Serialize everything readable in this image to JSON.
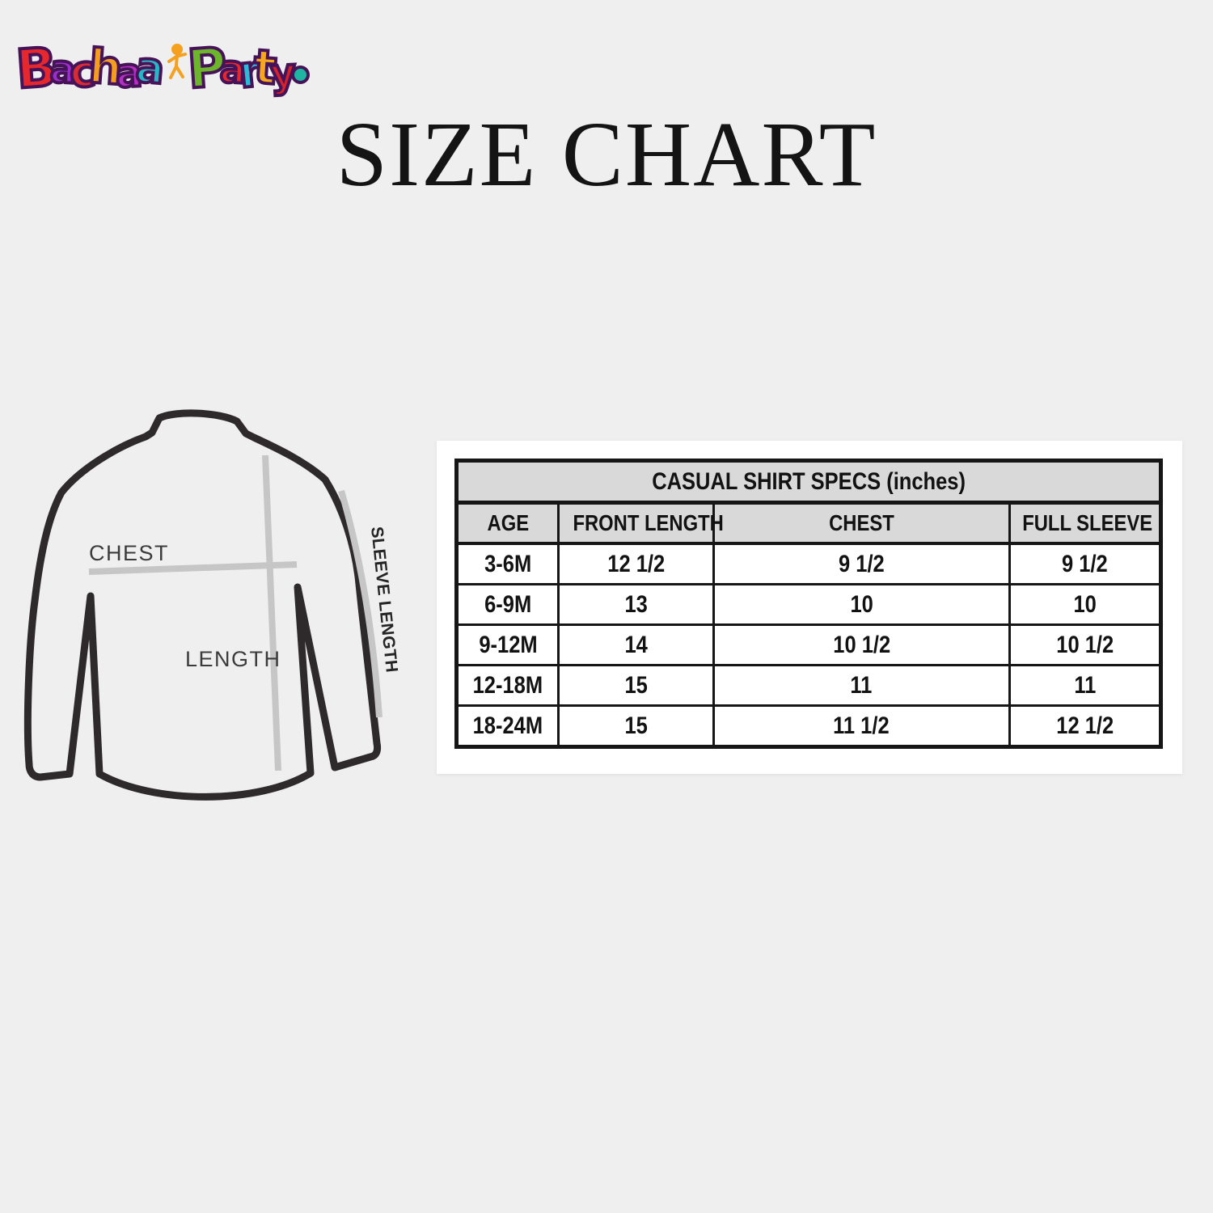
{
  "page": {
    "title": "SIZE CHART"
  },
  "logo": {
    "alt": "Bachaa Party",
    "outline_color": "#471358",
    "kid_color": "#f5a01e",
    "dot_color": "#1fb5a3",
    "word1": [
      {
        "ch": "B",
        "color": "#e5272e"
      },
      {
        "ch": "a",
        "color": "#9b2fc9"
      },
      {
        "ch": "c",
        "color": "#d92b33"
      },
      {
        "ch": "h",
        "color": "#f59d1e"
      },
      {
        "ch": "a",
        "color": "#b32fc4"
      },
      {
        "ch": "a",
        "color": "#2ab5c6"
      }
    ],
    "word2": [
      {
        "ch": "P",
        "color": "#6cb52d"
      },
      {
        "ch": "a",
        "color": "#e5272e"
      },
      {
        "ch": "r",
        "color": "#2fb9d8"
      },
      {
        "ch": "t",
        "color": "#f5a81d"
      },
      {
        "ch": "y",
        "color": "#d6222b"
      }
    ]
  },
  "diagram": {
    "chest_label": "CHEST",
    "length_label": "LENGTH",
    "sleeve_label": "SLEEVE LENGTH"
  },
  "size_table": {
    "title": "CASUAL SHIRT SPECS (inches)",
    "headers": [
      "AGE",
      "FRONT LENGTH",
      "CHEST",
      "FULL SLEEVE"
    ],
    "rows": [
      [
        "3-6M",
        "12 1/2",
        "9 1/2",
        "9 1/2"
      ],
      [
        "6-9M",
        "13",
        "10",
        "10"
      ],
      [
        "9-12M",
        "14",
        "10 1/2",
        "10 1/2"
      ],
      [
        "12-18M",
        "15",
        "11",
        "11"
      ],
      [
        "18-24M",
        "15",
        "11 1/2",
        "12 1/2"
      ]
    ]
  },
  "colors": {
    "background": "#f0efef",
    "table_header_bg": "#d9d9d9",
    "table_border": "#161616",
    "shirt_outline": "#2e2a2c",
    "measure_line": "#c7c6c6",
    "label_text": "#3b3b3b"
  }
}
